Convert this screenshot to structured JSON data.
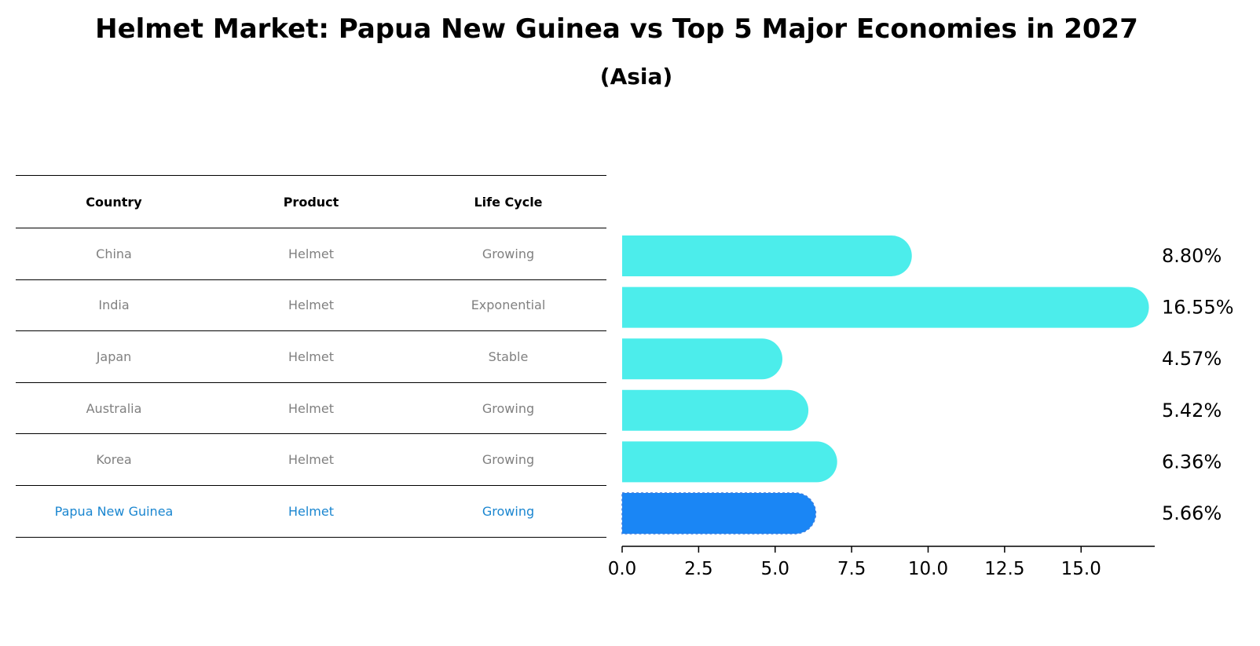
{
  "title": "Helmet Market: Papua New Guinea vs Top 5 Major Economies in 2027",
  "subtitle": "(Asia)",
  "table": {
    "headers": [
      "Country",
      "Product",
      "Life Cycle"
    ],
    "rows": [
      {
        "country": "China",
        "product": "Helmet",
        "life_cycle": "Growing"
      },
      {
        "country": "India",
        "product": "Helmet",
        "life_cycle": "Exponential"
      },
      {
        "country": "Japan",
        "product": "Helmet",
        "life_cycle": "Stable"
      },
      {
        "country": "Australia",
        "product": "Helmet",
        "life_cycle": "Growing"
      },
      {
        "country": "Korea",
        "product": "Helmet",
        "life_cycle": "Growing"
      },
      {
        "country": "Papua New Guinea",
        "product": "Helmet",
        "life_cycle": "Growing"
      }
    ]
  },
  "colors": {
    "bar": "#4cedeb",
    "highlight_bar": "#1a86f5",
    "highlight_text": "#1a86d0",
    "muted_text": "#808080"
  },
  "chart_data": {
    "type": "bar",
    "orientation": "horizontal",
    "categories": [
      "China",
      "India",
      "Japan",
      "Australia",
      "Korea",
      "Papua New Guinea"
    ],
    "values": [
      8.8,
      16.55,
      4.57,
      5.42,
      6.36,
      5.66
    ],
    "value_labels": [
      "8.80%",
      "16.55%",
      "4.57%",
      "5.42%",
      "6.36%",
      "5.66%"
    ],
    "highlight": "Papua New Guinea",
    "xlim": [
      0,
      17.4
    ],
    "xticks": [
      0.0,
      2.5,
      5.0,
      7.5,
      10.0,
      12.5,
      15.0
    ],
    "xtick_labels": [
      "0.0",
      "2.5",
      "5.0",
      "7.5",
      "10.0",
      "12.5",
      "15.0"
    ],
    "xlabel": "",
    "ylabel": "",
    "grid": false
  }
}
